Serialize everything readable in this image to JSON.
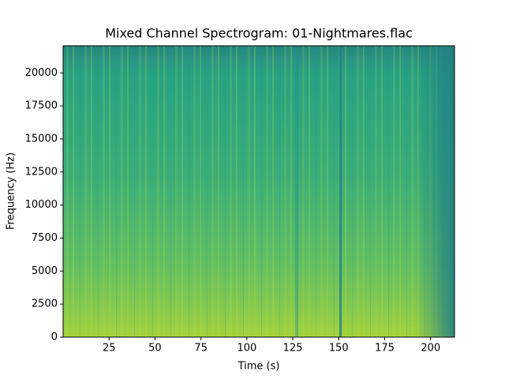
{
  "chart_data": {
    "type": "spectrogram",
    "title": "Mixed Channel Spectrogram: 01-Nightmares.flac",
    "xlabel": "Time (s)",
    "ylabel": "Frequency (Hz)",
    "xlim": [
      0,
      213
    ],
    "xticks": [
      25,
      50,
      75,
      100,
      125,
      150,
      175,
      200
    ],
    "ylim": [
      0,
      22050
    ],
    "yticks": [
      0,
      2500,
      5000,
      7500,
      10000,
      12500,
      15000,
      17500,
      20000
    ],
    "grid": false
  }
}
